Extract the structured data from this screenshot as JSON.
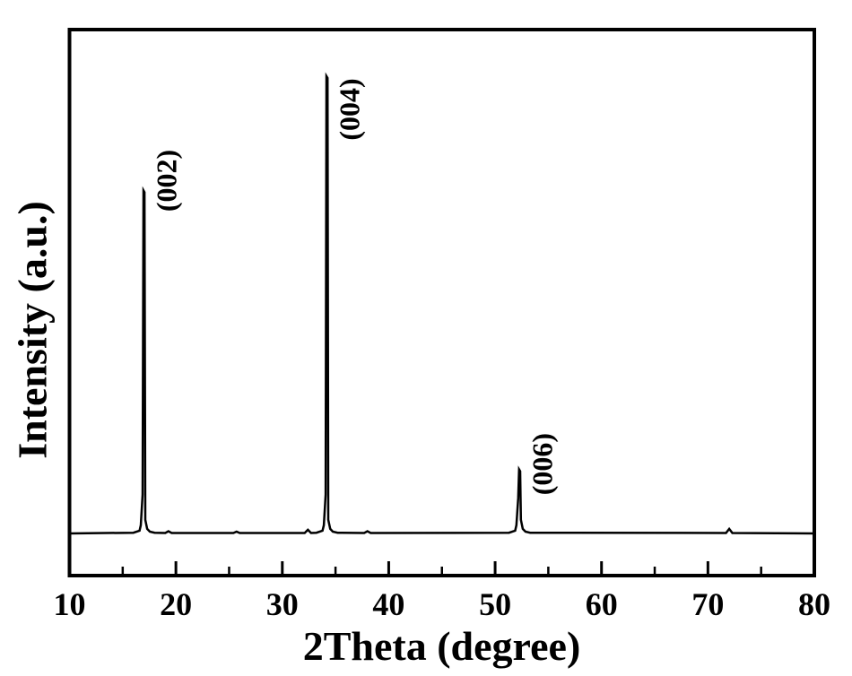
{
  "figure": {
    "background_color": "#ffffff",
    "foreground_color": "#000000",
    "description": "XRD pattern with three sharp basal-plane reflections"
  },
  "chart_data": {
    "type": "line",
    "title": "",
    "xlabel": "2Theta (degree)",
    "ylabel": "Intensity (a.u.)",
    "xlim": [
      10,
      80
    ],
    "ylim": [
      0,
      1.1
    ],
    "x_major_ticks": [
      10,
      20,
      30,
      40,
      50,
      60,
      70,
      80
    ],
    "x_minor_ticks": [
      15,
      25,
      35,
      45,
      55,
      65,
      75
    ],
    "y_ticks": [],
    "grid": false,
    "legend": null,
    "line_color": "#000000",
    "series": [
      {
        "name": "XRD pattern",
        "baseline_rel_intensity": 0.0,
        "peaks": [
          {
            "two_theta": 17.0,
            "rel_intensity": 0.75,
            "hkl": "(002)",
            "label_dy": -11
          },
          {
            "two_theta": 34.2,
            "rel_intensity": 1.0,
            "hkl": "(004)",
            "label_dy": 37
          },
          {
            "two_theta": 52.3,
            "rel_intensity": 0.14,
            "hkl": "(006)",
            "label_dy": -6
          }
        ],
        "minor_features": [
          {
            "two_theta": 19.3,
            "rel_intensity": 0.005
          },
          {
            "two_theta": 25.7,
            "rel_intensity": 0.004
          },
          {
            "two_theta": 32.4,
            "rel_intensity": 0.008
          },
          {
            "two_theta": 38.0,
            "rel_intensity": 0.005
          },
          {
            "two_theta": 72.0,
            "rel_intensity": 0.01
          }
        ]
      }
    ]
  }
}
